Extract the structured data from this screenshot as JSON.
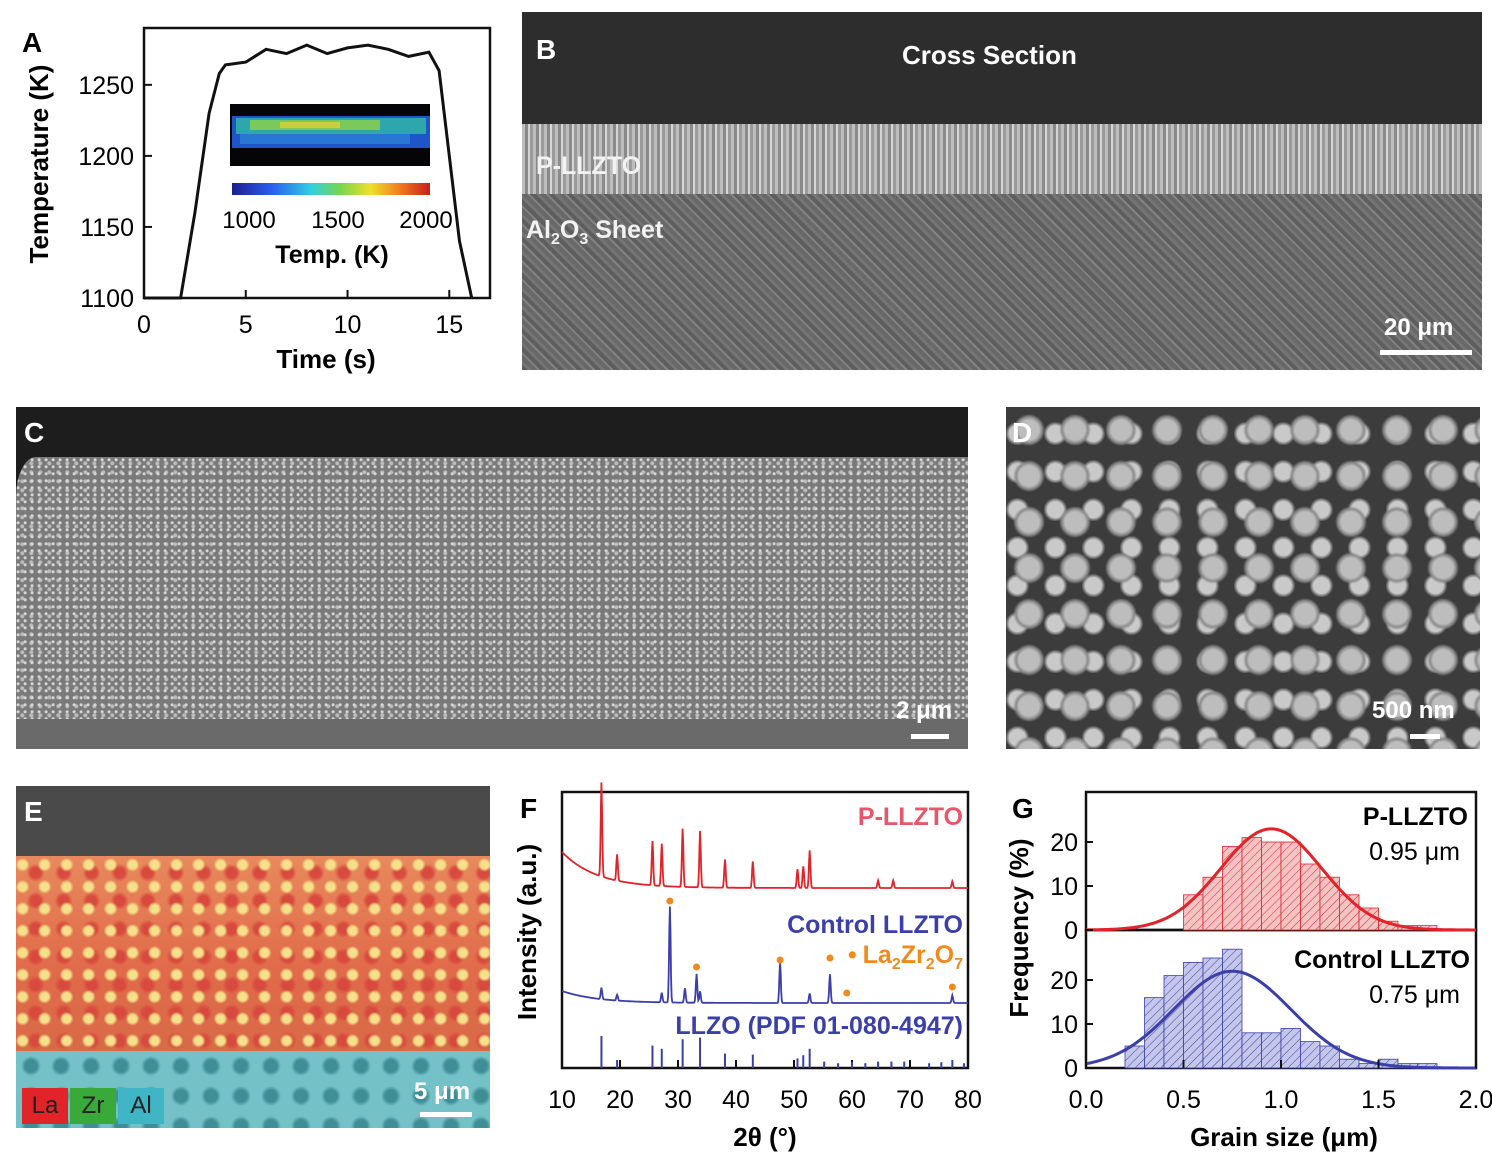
{
  "panels": {
    "a": {
      "letter": "A",
      "ylabel": "Temperature (K)",
      "xlabel": "Time (s)",
      "xticks": [
        "0",
        "5",
        "10",
        "15"
      ],
      "yticks": [
        "1100",
        "1150",
        "1200",
        "1250"
      ],
      "inset": {
        "colorbar_ticks": [
          "1000",
          "1500",
          "2000"
        ],
        "colorbar_label": "Temp. (K)"
      }
    },
    "b": {
      "letter": "B",
      "title": "Cross Section",
      "layer_top": "P-LLZTO",
      "layer_bottom_main": "Al",
      "layer_bottom_sub1": "2",
      "layer_bottom_mid": "O",
      "layer_bottom_sub2": "3",
      "layer_bottom_end": " Sheet",
      "scale": "20 μm"
    },
    "c": {
      "letter": "C",
      "scale": "2 μm"
    },
    "d": {
      "letter": "D",
      "scale": "500 nm"
    },
    "e": {
      "letter": "E",
      "scale": "5 μm",
      "legend": [
        "La",
        "Zr",
        "Al"
      ],
      "legend_colors": [
        "#e0242a",
        "#39a93a",
        "#3fb5c6"
      ]
    },
    "f": {
      "letter": "F",
      "ylabel": "Intensity (a.u.)",
      "xlabel": "2θ (°)",
      "xticks": [
        "10",
        "20",
        "30",
        "40",
        "50",
        "60",
        "70",
        "80"
      ],
      "label_p": "P-LLZTO",
      "label_control": "Control LLZTO",
      "label_ref": "LLZO (PDF 01-080-4947)",
      "label_impurity_main": "La",
      "label_impurity_sub1": "2",
      "label_impurity_mid": "Zr",
      "label_impurity_sub2": "2",
      "label_impurity_end": "O",
      "label_impurity_sub3": "7",
      "impurity_marker": "•"
    },
    "g": {
      "letter": "G",
      "ylabel": "Frequency (%)",
      "xlabel": "Grain size (μm)",
      "xticks": [
        "0.0",
        "0.5",
        "1.0",
        "1.5",
        "2.0"
      ],
      "yticks_top": [
        "0",
        "10",
        "20"
      ],
      "yticks_bottom": [
        "0",
        "10",
        "20"
      ],
      "top_name": "P-LLZTO",
      "top_value": "0.95 μm",
      "bottom_name": "Control LLZTO",
      "bottom_value": "0.75 μm"
    }
  },
  "colors": {
    "red": "#e0242a",
    "blue": "#3b3fa8",
    "orange": "#f08a1c",
    "pink_text": "#e8566a"
  },
  "chart_data": [
    {
      "type": "line",
      "x": [
        0,
        1.8,
        2.5,
        3.2,
        3.7,
        4.0,
        5,
        6,
        7,
        8,
        9,
        10,
        11,
        12,
        13,
        14,
        14.5,
        15,
        15.5,
        16.1
      ],
      "y": [
        1100,
        1100,
        1160,
        1230,
        1258,
        1264,
        1266,
        1275,
        1272,
        1278,
        1272,
        1276,
        1278,
        1275,
        1270,
        1273,
        1260,
        1200,
        1140,
        1100
      ],
      "xlabel": "Time (s)",
      "ylabel": "Temperature (K)",
      "xlim": [
        0,
        17
      ],
      "ylim": [
        1100,
        1290
      ]
    },
    {
      "type": "line",
      "xlabel": "2θ (°)",
      "ylabel": "Intensity (a.u.)",
      "xlim": [
        10,
        80
      ],
      "series": [
        {
          "name": "P-LLZTO",
          "peaks_x": [
            16.8,
            19.5,
            25.6,
            27.2,
            30.8,
            33.8,
            38.1,
            42.9,
            50.6,
            51.6,
            52.7,
            64.5,
            67.1,
            77.3
          ],
          "peaks_h": [
            1.0,
            0.28,
            0.47,
            0.45,
            0.62,
            0.6,
            0.3,
            0.28,
            0.2,
            0.23,
            0.4,
            0.08,
            0.08,
            0.07
          ]
        },
        {
          "name": "Control LLZTO",
          "peaks_x": [
            16.8,
            19.5,
            27.2,
            28.6,
            31.2,
            33.2,
            33.8,
            47.6,
            52.7,
            56.2,
            77.3
          ],
          "peaks_h": [
            0.12,
            0.06,
            0.1,
            1.0,
            0.15,
            0.3,
            0.12,
            0.42,
            0.1,
            0.3,
            0.08
          ]
        },
        {
          "name": "LLZO (PDF 01-080-4947)",
          "peaks_x": [
            16.8,
            19.5,
            25.6,
            27.2,
            30.8,
            33.8,
            38.1,
            42.9,
            50.6,
            51.6,
            52.7,
            55.2,
            57.6,
            60.0,
            62.3,
            64.5,
            66.8,
            69.0,
            73.3,
            75.4,
            77.3,
            79.3
          ],
          "peaks_h": [
            1.0,
            0.25,
            0.7,
            0.6,
            0.9,
            0.95,
            0.45,
            0.42,
            0.3,
            0.4,
            0.6,
            0.2,
            0.15,
            0.18,
            0.15,
            0.2,
            0.2,
            0.2,
            0.15,
            0.18,
            0.25,
            0.15
          ]
        },
        {
          "name": "La2Zr2O7",
          "peaks_x": [
            28.6,
            33.2,
            47.6,
            56.2,
            59.1,
            77.3
          ]
        }
      ]
    },
    {
      "type": "bar",
      "xlabel": "Grain size (μm)",
      "ylabel": "Frequency (%)",
      "xlim": [
        0,
        2
      ],
      "series": [
        {
          "name": "P-LLZTO",
          "bin_left": [
            0.5,
            0.6,
            0.7,
            0.8,
            0.9,
            1.0,
            1.1,
            1.2,
            1.3,
            1.4,
            1.5,
            1.6,
            1.7
          ],
          "values": [
            8,
            12,
            19,
            21,
            20,
            20,
            15,
            12,
            8,
            5,
            2,
            1,
            1
          ],
          "mean": 0.95
        },
        {
          "name": "Control LLZTO",
          "bin_left": [
            0.2,
            0.3,
            0.4,
            0.5,
            0.6,
            0.7,
            0.8,
            0.9,
            1.0,
            1.1,
            1.2,
            1.3,
            1.4,
            1.5,
            1.6,
            1.7
          ],
          "values": [
            5,
            16,
            21,
            24,
            25,
            27,
            8,
            8,
            9,
            6,
            5,
            2,
            1,
            2,
            1,
            1
          ],
          "mean": 0.75
        }
      ]
    }
  ]
}
